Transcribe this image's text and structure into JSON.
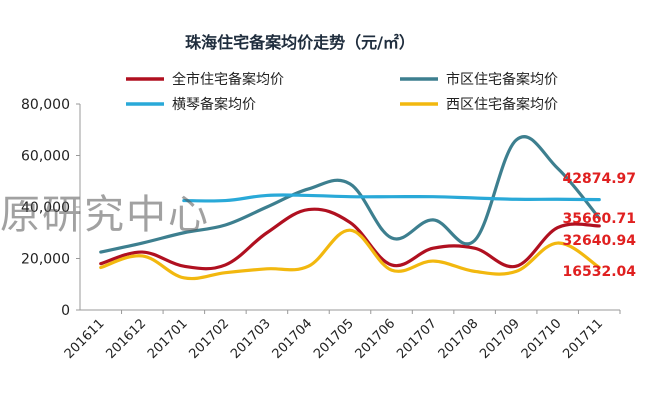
{
  "chart_data": {
    "type": "line",
    "title": "珠海住宅备案均价走势（元/㎡）",
    "categories": [
      "201611",
      "201612",
      "201701",
      "201702",
      "201703",
      "201704",
      "201705",
      "201706",
      "201707",
      "201708",
      "201709",
      "201710",
      "201711"
    ],
    "ylim": [
      0,
      80000
    ],
    "yticks": [
      0,
      20000,
      40000,
      60000,
      80000
    ],
    "ytick_labels": [
      "0",
      "20,000",
      "40,000",
      "60,000",
      "80,000"
    ],
    "grid": false,
    "legend_position": "top",
    "series": [
      {
        "name": "全市住宅备案均价",
        "color": "#b01020",
        "values": [
          18000,
          22500,
          17000,
          17500,
          30000,
          39000,
          34000,
          17500,
          24000,
          24000,
          17000,
          32000,
          32640.94
        ]
      },
      {
        "name": "市区住宅备案均价",
        "color": "#3d7f8f",
        "values": [
          22500,
          26000,
          30000,
          33000,
          40000,
          47000,
          49000,
          28000,
          35000,
          27000,
          66000,
          55000,
          35660.71
        ]
      },
      {
        "name": "横琴备案均价",
        "color": "#29a9d8",
        "values": [
          null,
          null,
          42500,
          42500,
          44500,
          44500,
          44000,
          44000,
          44000,
          43500,
          43000,
          43000,
          42874.97
        ]
      },
      {
        "name": "西区住宅备案均价",
        "color": "#f2b80f",
        "values": [
          16500,
          21000,
          12500,
          14500,
          16000,
          17000,
          31000,
          15500,
          19000,
          15000,
          15000,
          26000,
          16532.04
        ]
      }
    ],
    "end_labels": [
      {
        "text": "42874.97",
        "value": 42874.97
      },
      {
        "text": "35660.71",
        "value": 35660.71
      },
      {
        "text": "32640.94",
        "value": 32640.94
      },
      {
        "text": "16532.04",
        "value": 16532.04
      }
    ],
    "watermark": "原研究中心"
  }
}
